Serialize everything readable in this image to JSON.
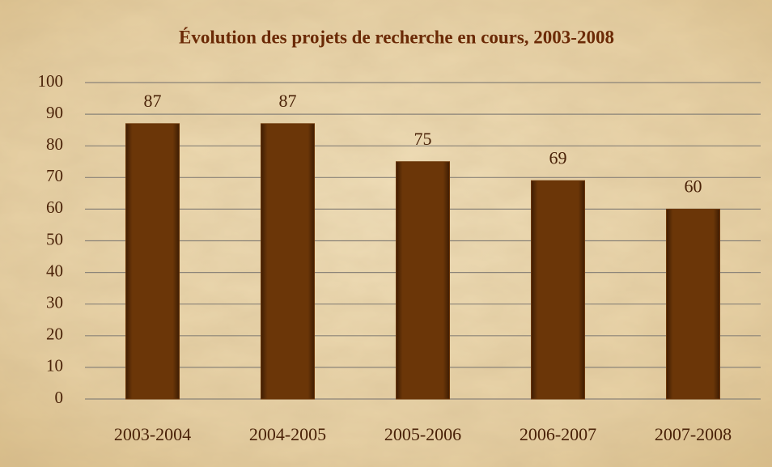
{
  "chart_data": {
    "type": "bar",
    "title": "Évolution des projets de recherche en cours, 2003-2008",
    "categories": [
      "2003-2004",
      "2004-2005",
      "2005-2006",
      "2006-2007",
      "2007-2008"
    ],
    "values": [
      87,
      87,
      75,
      69,
      60
    ],
    "color": "#6b3608",
    "ylim": [
      0,
      100
    ],
    "yticks": [
      0,
      10,
      20,
      30,
      40,
      50,
      60,
      70,
      80,
      90,
      100
    ],
    "grid": true
  }
}
